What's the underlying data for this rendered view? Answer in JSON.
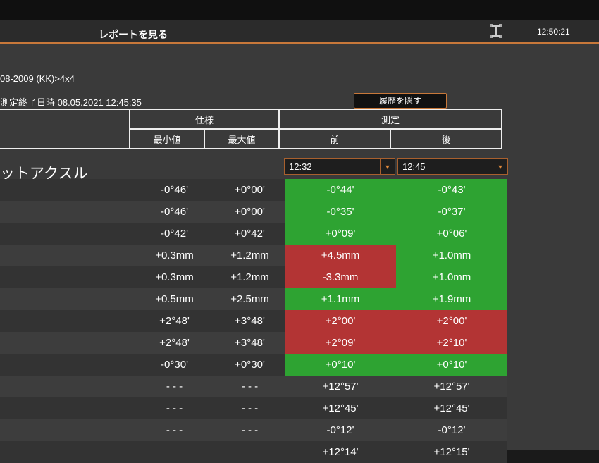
{
  "header": {
    "title": "レポートを見る",
    "clock": "12:50:21"
  },
  "vehicle": "08-2009 (KK)>4x4",
  "measure_end": "測定終了日時  08.05.2021 12:45:35",
  "hide_history_label": "履歴を隠す",
  "table_header": {
    "spec": "仕様",
    "measurement": "測定",
    "min": "最小値",
    "max": "最大値",
    "before": "前",
    "after": "後"
  },
  "axle_label": "ットアクスル",
  "before_time": "12:32",
  "after_time": "12:45",
  "colors": {
    "ok": "#2ea332",
    "bad": "#b33434",
    "accent": "#c8783a"
  },
  "rows": [
    {
      "min": "-0°46'",
      "max": "+0°00'",
      "before": "-0°44'",
      "after": "-0°43'",
      "before_status": "green",
      "after_status": "green"
    },
    {
      "min": "-0°46'",
      "max": "+0°00'",
      "before": "-0°35'",
      "after": "-0°37'",
      "before_status": "green",
      "after_status": "green"
    },
    {
      "min": "-0°42'",
      "max": "+0°42'",
      "before": "+0°09'",
      "after": "+0°06'",
      "before_status": "green",
      "after_status": "green"
    },
    {
      "min": "+0.3mm",
      "max": "+1.2mm",
      "before": "+4.5mm",
      "after": "+1.0mm",
      "before_status": "red",
      "after_status": "green"
    },
    {
      "min": "+0.3mm",
      "max": "+1.2mm",
      "before": "-3.3mm",
      "after": "+1.0mm",
      "before_status": "red",
      "after_status": "green"
    },
    {
      "min": "+0.5mm",
      "max": "+2.5mm",
      "before": "+1.1mm",
      "after": "+1.9mm",
      "before_status": "green",
      "after_status": "green"
    },
    {
      "min": "+2°48'",
      "max": "+3°48'",
      "before": "+2°00'",
      "after": "+2°00'",
      "before_status": "red",
      "after_status": "red"
    },
    {
      "min": "+2°48'",
      "max": "+3°48'",
      "before": "+2°09'",
      "after": "+2°10'",
      "before_status": "red",
      "after_status": "red"
    },
    {
      "min": "-0°30'",
      "max": "+0°30'",
      "before": "+0°10'",
      "after": "+0°10'",
      "before_status": "green",
      "after_status": "green"
    },
    {
      "min": "- - -",
      "max": "- - -",
      "before": "+12°57'",
      "after": "+12°57'",
      "before_status": "",
      "after_status": ""
    },
    {
      "min": "- - -",
      "max": "- - -",
      "before": "+12°45'",
      "after": "+12°45'",
      "before_status": "",
      "after_status": ""
    },
    {
      "min": "- - -",
      "max": "- - -",
      "before": "-0°12'",
      "after": "-0°12'",
      "before_status": "",
      "after_status": ""
    },
    {
      "min": "",
      "max": "",
      "before": "+12°14'",
      "after": "+12°15'",
      "before_status": "",
      "after_status": ""
    }
  ]
}
